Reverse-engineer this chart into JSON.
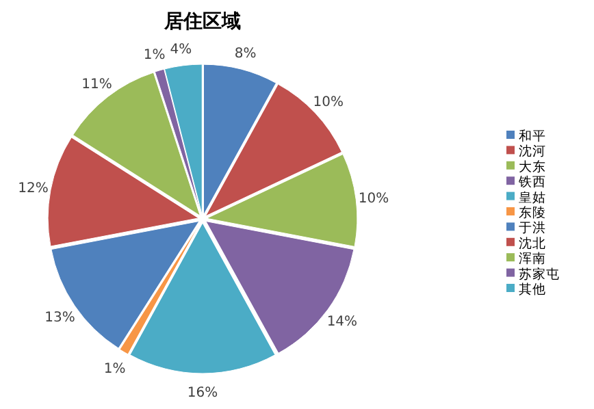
{
  "chart_data": {
    "type": "pie",
    "title": "居住区域",
    "categories": [
      "和平",
      "沈河",
      "大东",
      "铁西",
      "皇姑",
      "东陵",
      "于洪",
      "沈北",
      "浑南",
      "苏家屯",
      "其他"
    ],
    "values": [
      8,
      10,
      10,
      14,
      16,
      1,
      13,
      12,
      11,
      1,
      4
    ],
    "value_labels": [
      "8%",
      "10%",
      "10%",
      "14%",
      "16%",
      "1%",
      "13%",
      "12%",
      "11%",
      "1%",
      "4%"
    ],
    "colors": [
      "#4f81bd",
      "#c0504d",
      "#9bbb59",
      "#8064a2",
      "#4bacc6",
      "#f79646",
      "#4f81bd",
      "#c0504d",
      "#9bbb59",
      "#8064a2",
      "#4bacc6"
    ],
    "legend": "right"
  }
}
